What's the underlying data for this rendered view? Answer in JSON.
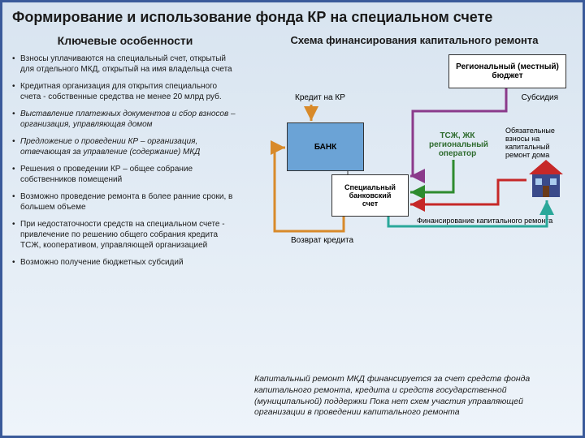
{
  "title": "Формирование и использование фонда КР на специальном счете",
  "left_subtitle": "Ключевые особенности",
  "right_subtitle": "Схема финансирования капитального ремонта",
  "bullets": [
    {
      "text": "Взносы уплачиваются на специальный счет, открытый для отдельного МКД, открытый на имя владельца счета",
      "italic": false
    },
    {
      "text": "Кредитная организация для открытия специального счета - собственные средства не менее 20 млрд руб.",
      "italic": false
    },
    {
      "text": "Выставление платежных документов и сбор взносов – организация, управляющая домом",
      "italic": true
    },
    {
      "text": "Предложение о проведении КР – организация, отвечающая за управление (содержание) МКД",
      "italic": true
    },
    {
      "text": "Решения о проведении КР – общее собрание собственников помещений",
      "italic": false
    },
    {
      "text": "Возможно проведение ремонта в более ранние сроки, в большем объеме",
      "italic": false
    },
    {
      "text": "При недостаточности средств на специальном счете - привлечение по решению общего собрания кредита ТСЖ, кооперативом, управляющей организацией",
      "italic": false
    },
    {
      "text": "Возможно получение бюджетных субсидий",
      "italic": false
    }
  ],
  "boxes": {
    "budget": "Региональный (местный) бюджет",
    "bank": "БАНК",
    "account_l1": "Специальный",
    "account_l2": "банковский",
    "account_l3": "счет"
  },
  "labels": {
    "credit": "Кредит на КР",
    "subsidy": "Субсидия",
    "operator": "ТСЖ, ЖК региональный оператор",
    "contrib": "Обязательные взносы на капитальный ремонт дома",
    "return": "Возврат кредита",
    "finance": "Финансирование капитального ремонта"
  },
  "footnote": "Капитальный ремонт МКД финансируется за счет средств фонда капитального ремонта, кредита и средств государственной (муниципальной) поддержки Пока нет схем участия управляющей организации в проведении капитального ремонта",
  "colors": {
    "budget_arrow": "#8b3a8b",
    "credit_arrow": "#d88a2a",
    "return_arrow": "#d88a2a",
    "operator_arrow": "#2e8b2e",
    "finance_arrow": "#2aa89a",
    "contrib_arrow": "#c62828",
    "house_roof": "#c62828",
    "house_body": "#3a4a8a"
  }
}
